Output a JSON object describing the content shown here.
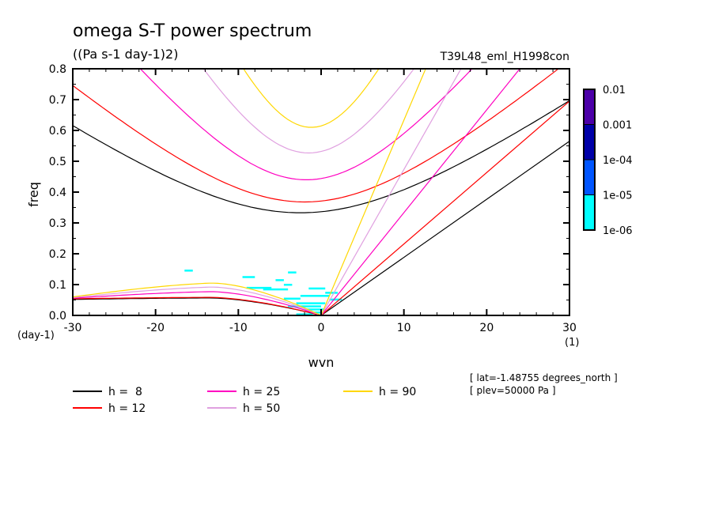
{
  "chart_data": {
    "type": "line",
    "title": "omega S-T power spectrum",
    "subtitle": "((Pa s-1 day-1)2)",
    "run_label": "T39L48_eml_H1998con",
    "xlabel": "wvn",
    "ylabel": "freq",
    "x_unit": "(1)",
    "y_unit": "(day-1)",
    "xlim": [
      -30,
      30
    ],
    "ylim": [
      0.0,
      0.8
    ],
    "x_ticks": [
      -30,
      -20,
      -10,
      0,
      10,
      20,
      30
    ],
    "x_tick_labels": [
      "-30",
      "-20",
      "-10",
      "0",
      "10",
      "20",
      "30"
    ],
    "y_ticks": [
      0.0,
      0.1,
      0.2,
      0.3,
      0.4,
      0.5,
      0.6,
      0.7,
      0.8
    ],
    "y_tick_labels": [
      "0.0",
      "0.1",
      "0.2",
      "0.3",
      "0.4",
      "0.5",
      "0.6",
      "0.7",
      "0.8"
    ],
    "grid": false,
    "colorbar": {
      "levels": [
        "0.01",
        "0.001",
        "1e-04",
        "1e-05",
        "1e-06"
      ],
      "colors": [
        "#4c00a8",
        "#0000a8",
        "#0055ff",
        "#00ffff"
      ]
    },
    "shaded_power": {
      "level": "1e-06 to 1e-05",
      "color": "#00ffff",
      "segments": [
        {
          "x": [
            -16.5,
            -15.5
          ],
          "y": 0.146
        },
        {
          "x": [
            -9.5,
            -8.0
          ],
          "y": 0.125
        },
        {
          "x": [
            -5.5,
            -4.5
          ],
          "y": 0.115
        },
        {
          "x": [
            -4.0,
            -3.0
          ],
          "y": 0.14
        },
        {
          "x": [
            -4.5,
            -3.5
          ],
          "y": 0.1
        },
        {
          "x": [
            -1.5,
            0.5
          ],
          "y": 0.088
        },
        {
          "x": [
            0.5,
            2.0
          ],
          "y": 0.074
        },
        {
          "x": [
            -2.5,
            1.0
          ],
          "y": 0.064
        },
        {
          "x": [
            -9.0,
            -6.0
          ],
          "y": 0.09
        },
        {
          "x": [
            -7.0,
            -4.0
          ],
          "y": 0.085
        },
        {
          "x": [
            -4.5,
            -2.5
          ],
          "y": 0.055
        },
        {
          "x": [
            -3.0,
            0.5
          ],
          "y": 0.04
        },
        {
          "x": [
            -4.0,
            0.0
          ],
          "y": 0.03
        },
        {
          "x": [
            -2.0,
            0.5
          ],
          "y": 0.02
        },
        {
          "x": [
            -1.5,
            0.5
          ],
          "y": 0.01
        },
        {
          "x": [
            1.0,
            2.5
          ],
          "y": 0.052
        },
        {
          "x": [
            -3.0,
            -1.0
          ],
          "y": 0.004
        }
      ]
    },
    "legend": {
      "placement": "bottom",
      "entries": [
        {
          "label": "h =  8",
          "color": "#000000"
        },
        {
          "label": "h = 12",
          "color": "#ff0000"
        },
        {
          "label": "h = 25",
          "color": "#ff00c0"
        },
        {
          "label": "h = 50",
          "color": "#e0a0e0"
        },
        {
          "label": "h = 90",
          "color": "#ffd700"
        }
      ]
    },
    "series": [
      {
        "name": "h = 8",
        "equivalent_depth_m": 8,
        "color": "#000000",
        "kelvin_x": [
          0,
          30
        ],
        "kelvin_y": [
          0,
          0.565
        ],
        "ig_min": {
          "x": -2.5,
          "y": 0.333
        },
        "ig_at_minus30": 0.635,
        "ig_at_30": 0.69,
        "mrg_at_minus30": 0.052
      },
      {
        "name": "h = 12",
        "equivalent_depth_m": 12,
        "color": "#ff0000",
        "kelvin_x": [
          0,
          30
        ],
        "kelvin_y": [
          0,
          0.695
        ],
        "ig_min": {
          "x": -2.0,
          "y": 0.368
        },
        "ig_at_minus30": 0.765,
        "ig_at_30": 0.83,
        "mrg_at_minus30": 0.054
      },
      {
        "name": "h = 25",
        "equivalent_depth_m": 25,
        "color": "#ff00c0",
        "kelvin_x": [
          0,
          30
        ],
        "kelvin_y": [
          0,
          1.0
        ],
        "ig_min": {
          "x": -1.8,
          "y": 0.44
        },
        "mrg_at_minus30": 0.056
      },
      {
        "name": "h = 50",
        "equivalent_depth_m": 50,
        "color": "#e0a0e0",
        "kelvin_x": [
          0,
          30
        ],
        "kelvin_y": [
          0,
          1.42
        ],
        "ig_min": {
          "x": -1.5,
          "y": 0.527
        },
        "mrg_at_minus30": 0.058
      },
      {
        "name": "h = 90",
        "equivalent_depth_m": 90,
        "color": "#ffd700",
        "kelvin_x": [
          0,
          30
        ],
        "kelvin_y": [
          0,
          1.9
        ],
        "ig_min": {
          "x": -1.2,
          "y": 0.61
        },
        "mrg_at_minus30": 0.06
      }
    ],
    "annotations": [
      "[ lat=-1.48755 degrees_north ]",
      "[ plev=50000 Pa ]"
    ]
  }
}
